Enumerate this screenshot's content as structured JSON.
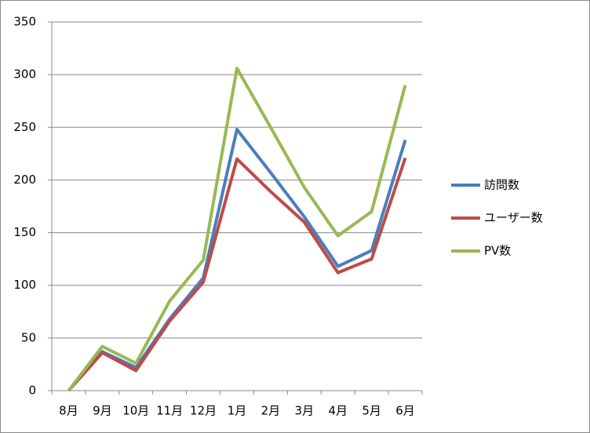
{
  "chart_data": {
    "type": "line",
    "categories": [
      "8月",
      "9月",
      "10月",
      "11月",
      "12月",
      "1月",
      "2月",
      "3月",
      "4月",
      "5月",
      "6月"
    ],
    "series": [
      {
        "name": "訪問数",
        "color": "#4a7ebb",
        "values": [
          0,
          37,
          22,
          68,
          107,
          248,
          207,
          165,
          118,
          133,
          238
        ]
      },
      {
        "name": "ユーザー数",
        "color": "#be4b48",
        "values": [
          0,
          36,
          19,
          66,
          103,
          220,
          189,
          160,
          112,
          125,
          221
        ]
      },
      {
        "name": "PV数",
        "color": "#98b954",
        "values": [
          0,
          42,
          26,
          85,
          124,
          306,
          250,
          193,
          147,
          170,
          290
        ]
      }
    ],
    "ylim": [
      0,
      350
    ],
    "yticks": [
      0,
      50,
      100,
      150,
      200,
      250,
      300,
      350
    ],
    "grid": true,
    "legend": "right"
  }
}
